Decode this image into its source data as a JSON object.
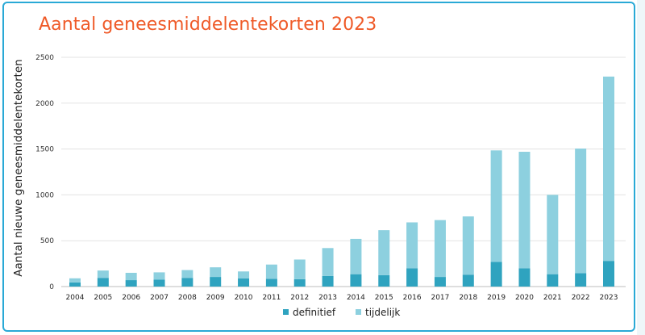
{
  "chart_data": {
    "type": "bar",
    "stacked": true,
    "title": "Aantal geneesmiddelentekorten 2023",
    "xlabel": "",
    "ylabel": "Aantal nieuwe geneesmiddelentekorten",
    "ylim": [
      0,
      2500
    ],
    "yticks": [
      "0",
      "500",
      "1000",
      "1500",
      "2000",
      "2500"
    ],
    "grid": true,
    "legend_position": "bottom",
    "categories": [
      "2004",
      "2005",
      "2006",
      "2007",
      "2008",
      "2009",
      "2010",
      "2011",
      "2012",
      "2013",
      "2014",
      "2015",
      "2016",
      "2017",
      "2018",
      "2019",
      "2020",
      "2021",
      "2022",
      "2023"
    ],
    "series": [
      {
        "name": "definitief",
        "color": "#2fa3bf",
        "values": [
          45,
          95,
          70,
          75,
          95,
          105,
          90,
          85,
          80,
          115,
          135,
          125,
          200,
          105,
          130,
          270,
          200,
          135,
          145,
          280
        ]
      },
      {
        "name": "tijdelijk",
        "color": "#8dd0df",
        "values": [
          45,
          80,
          80,
          80,
          85,
          105,
          75,
          155,
          215,
          305,
          385,
          490,
          500,
          620,
          635,
          1215,
          1270,
          865,
          1360,
          2010
        ]
      }
    ]
  }
}
